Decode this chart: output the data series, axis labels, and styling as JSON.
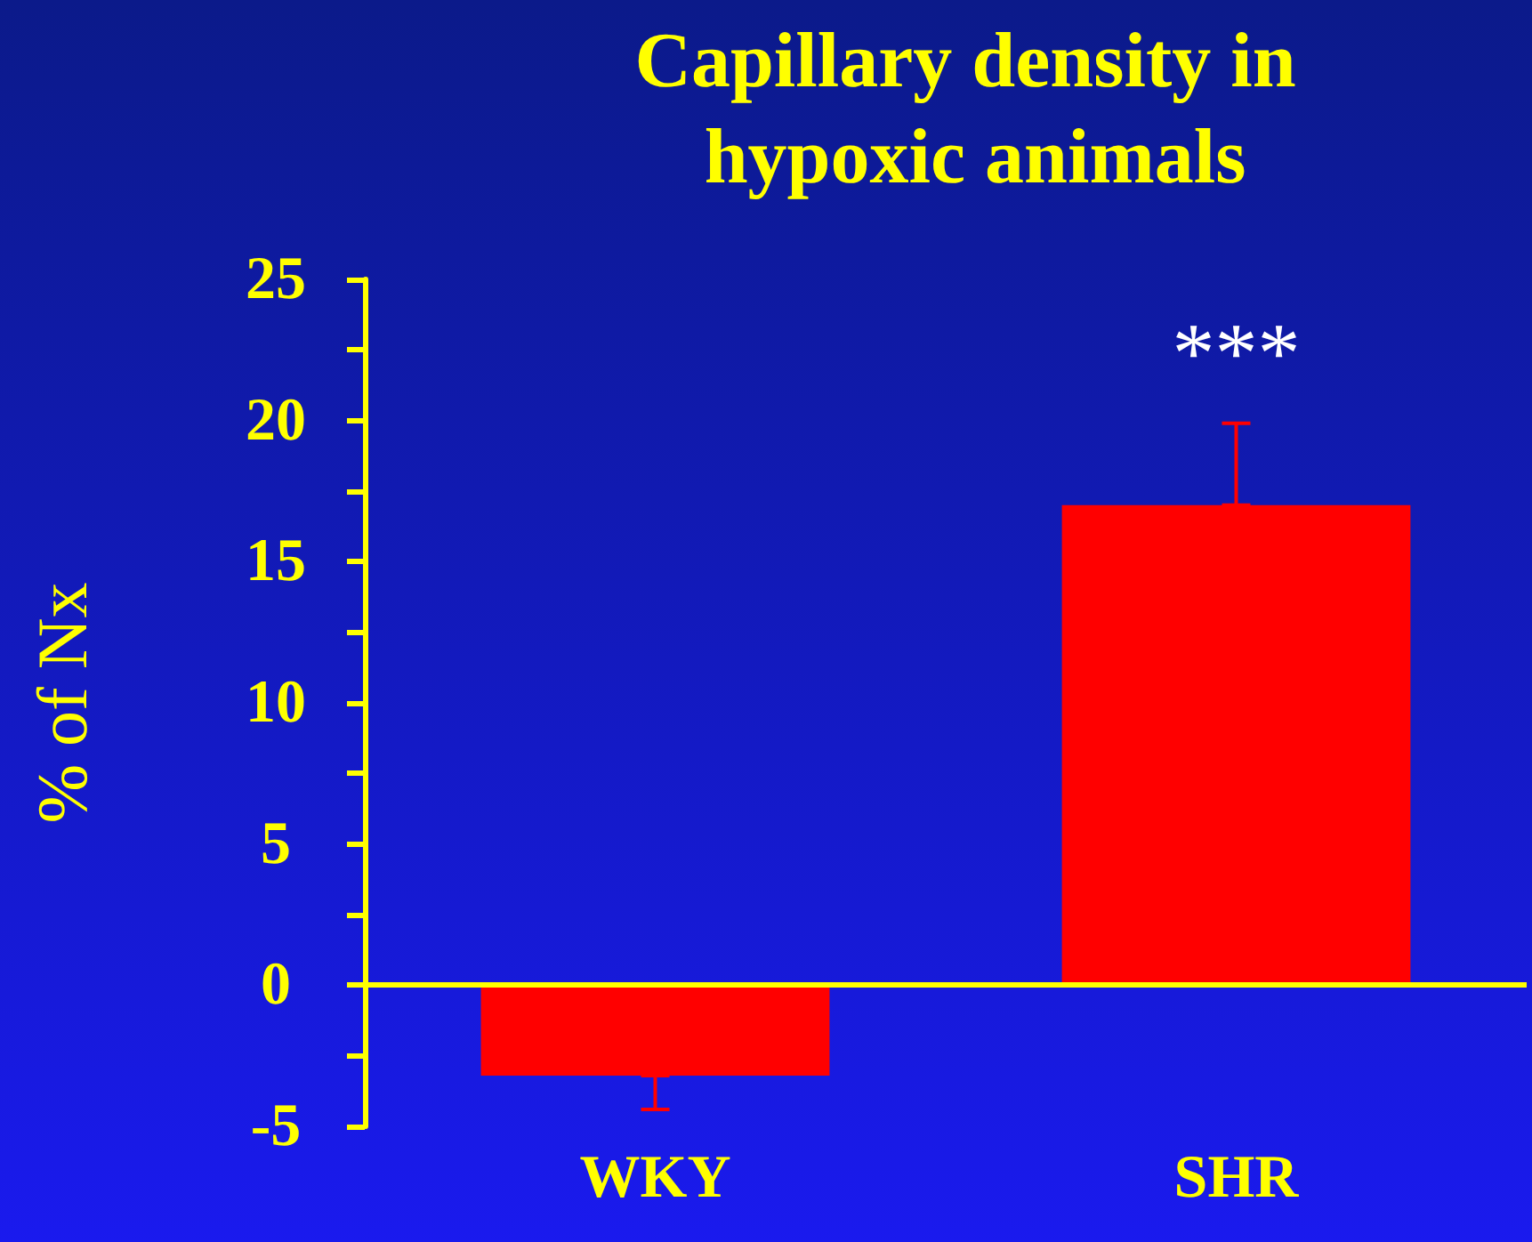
{
  "chart_data": {
    "type": "bar",
    "title": "Capillary density in hypoxic animals",
    "ylabel": "% of Nx",
    "categories": [
      "WKY",
      "SHR"
    ],
    "values": [
      -3.2,
      17.0
    ],
    "errors": [
      [
        -4.4,
        -3.2
      ],
      [
        17.0,
        19.9
      ]
    ],
    "color": "#ff0000",
    "ylim": [
      -5,
      25
    ],
    "yticks": [
      -5,
      {
        "value": -2.5,
        "label": null
      },
      0,
      {
        "value": 2.5,
        "label": null
      },
      5,
      {
        "value": 7.5,
        "label": null
      },
      10,
      {
        "value": 12.5,
        "label": null
      },
      15,
      {
        "value": 17.5,
        "label": null
      },
      20,
      {
        "value": 22.5,
        "label": null
      },
      25
    ],
    "annotations": [
      "***"
    ],
    "ref_lines": [
      {
        "axis": "y",
        "value": 0,
        "color": "#ffff00"
      }
    ],
    "grid": false
  }
}
